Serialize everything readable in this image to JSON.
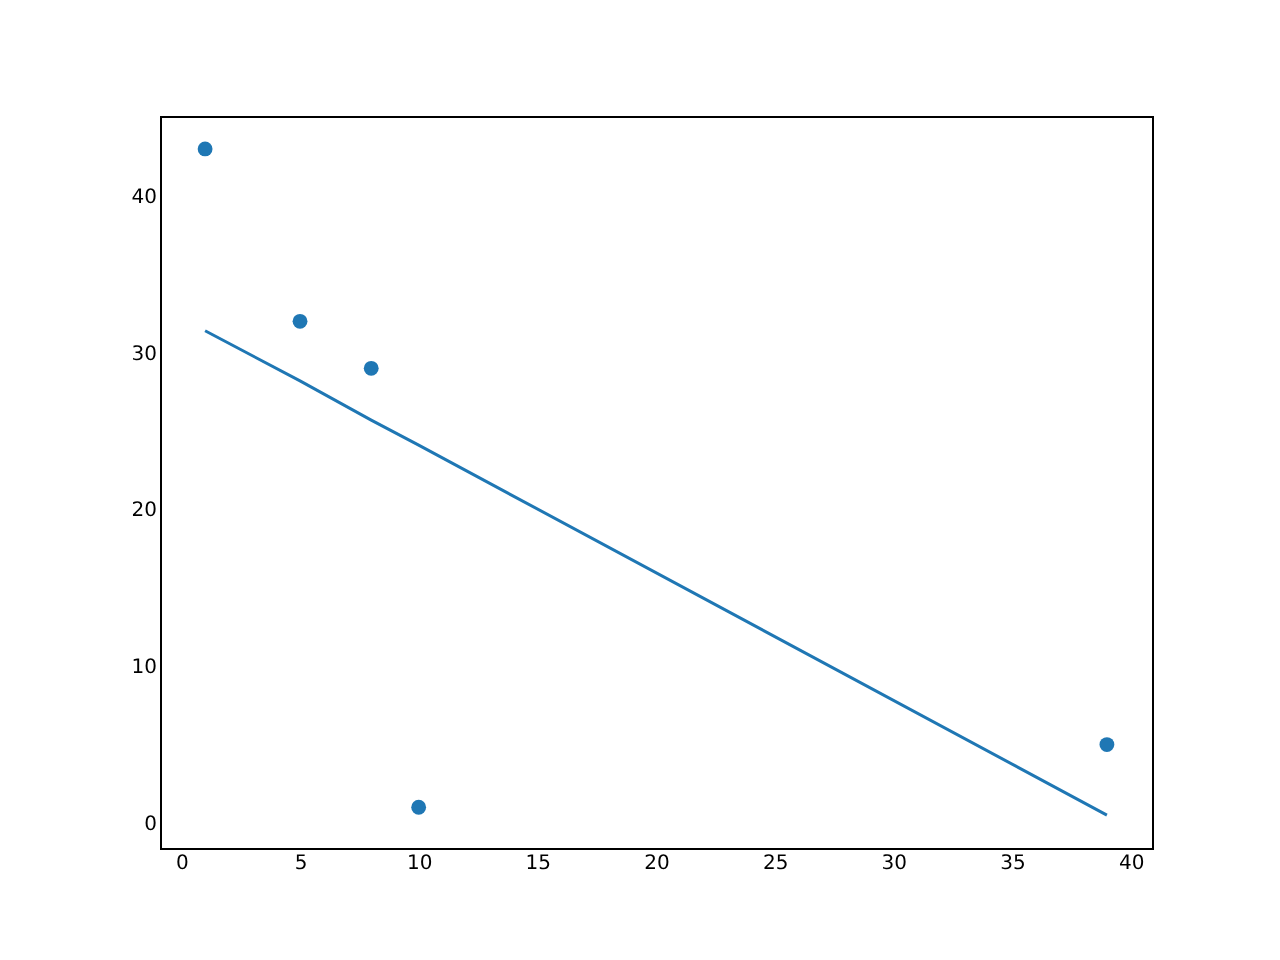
{
  "chart_data": {
    "type": "scatter",
    "xlim": [
      -0.9,
      40.9
    ],
    "ylim": [
      -1.6,
      45.1
    ],
    "xticks": [
      0,
      5,
      10,
      15,
      20,
      25,
      30,
      35,
      40
    ],
    "yticks": [
      0,
      10,
      20,
      30,
      40
    ],
    "grid": false,
    "series": [
      {
        "color": "#1f77b4",
        "marker": "circle",
        "x": [
          1,
          5,
          8,
          10,
          39
        ],
        "values": [
          43,
          32,
          29,
          1,
          5
        ]
      },
      {
        "type": "line",
        "color": "#1f77b4",
        "x": [
          1,
          5,
          8,
          10,
          39
        ],
        "values": [
          31.4,
          28.2,
          25.7,
          24.1,
          0.5
        ]
      }
    ]
  }
}
